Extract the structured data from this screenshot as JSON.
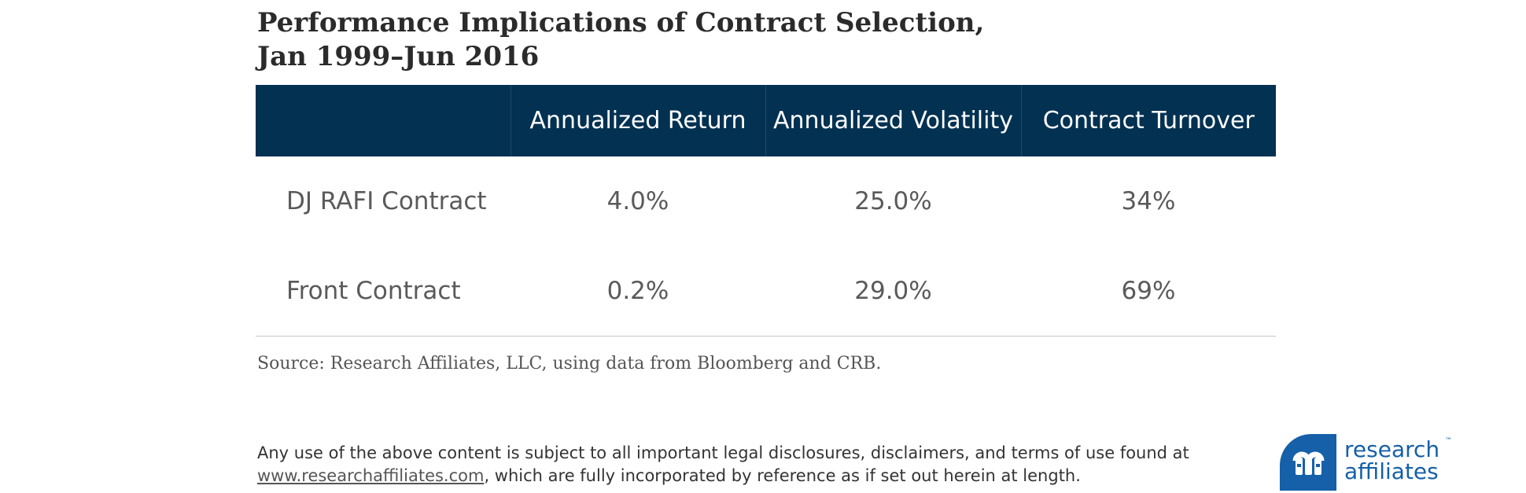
{
  "title": {
    "line1": "Performance Implications of Contract Selection,",
    "line2": "Jan 1999–Jun 2016"
  },
  "chart_data": {
    "type": "table",
    "title": "Performance Implications of Contract Selection, Jan 1999–Jun 2016",
    "columns": [
      "",
      "Annualized Return",
      "Annualized Volatility",
      "Contract Turnover"
    ],
    "rows": [
      {
        "label": "DJ RAFI Contract",
        "values": [
          "4.0%",
          "25.0%",
          "34%"
        ]
      },
      {
        "label": "Front Contract",
        "values": [
          "0.2%",
          "29.0%",
          "69%"
        ]
      }
    ],
    "header_color": "#033152"
  },
  "source": "Source: Research Affiliates, LLC, using data from Bloomberg and CRB.",
  "disclaimer": {
    "line1": "Any use of the above content is subject to all important legal disclosures, disclaimers, and terms of use found at",
    "link": "www.researchaffiliates.com",
    "line2_rest": ", which are fully incorporated by reference as if set out herein at length."
  },
  "brand": {
    "name_line1": "research",
    "name_line2": "affiliates",
    "trademark": "™",
    "logo_icon": "research-affiliates-logo-icon",
    "color": "#1560a8"
  }
}
